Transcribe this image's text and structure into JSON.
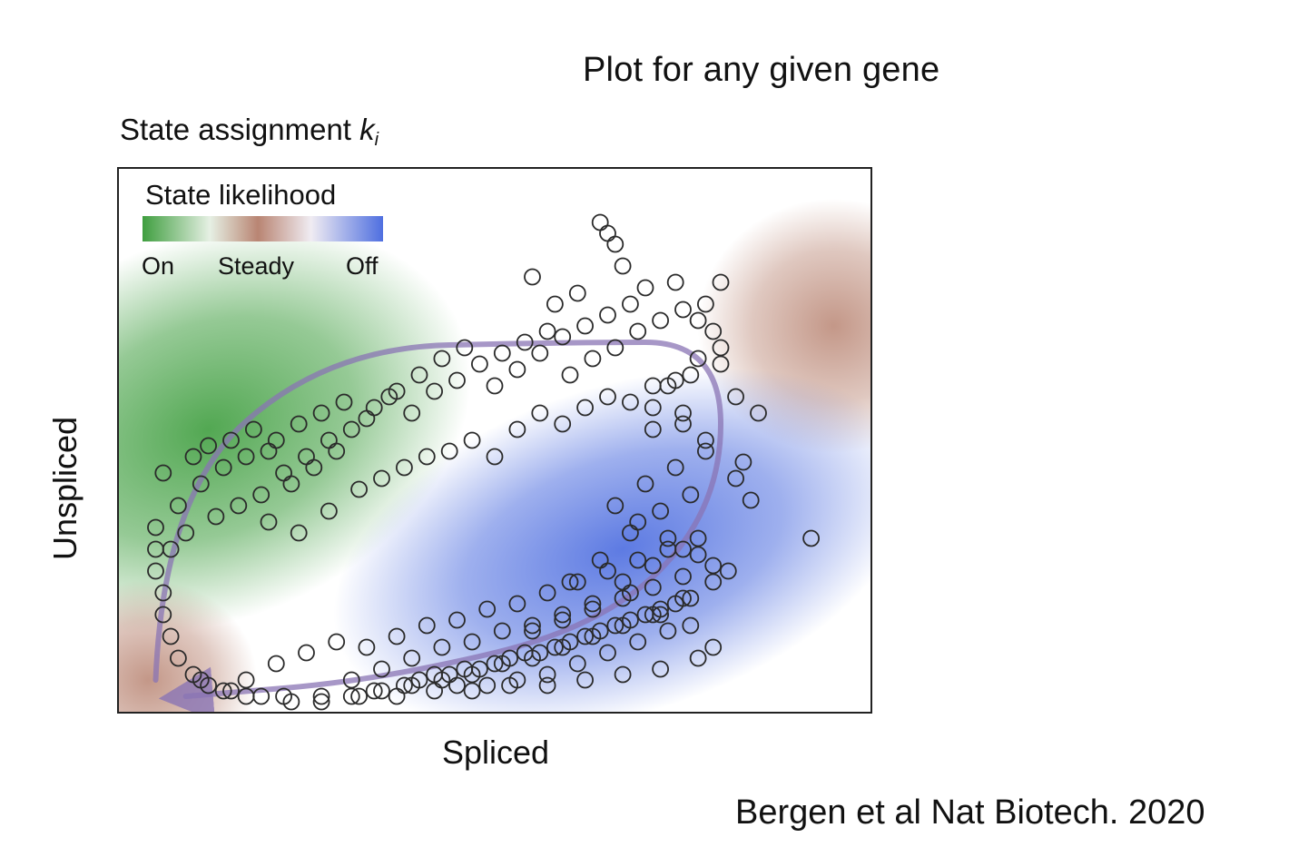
{
  "slide_title": "Plot for any given gene",
  "citation": "Bergen et al Nat Biotech. 2020",
  "chart_data": {
    "type": "scatter",
    "title": "State assignment",
    "title_symbol": "k",
    "title_subscript": "i",
    "xlabel": "Spliced",
    "ylabel": "Unspliced",
    "axis_ticks_shown": false,
    "grid": false,
    "xlim": [
      0,
      1
    ],
    "ylim": [
      0,
      1
    ],
    "legend": {
      "title": "State likelihood",
      "placement": "top-left",
      "labels": [
        "On",
        "Steady",
        "Off"
      ],
      "colors": {
        "on": "#3f9e3f",
        "steady": "#b98573",
        "off": "#4f6fe0"
      }
    },
    "background_regions": [
      {
        "state": "on",
        "center": [
          0.12,
          0.52
        ],
        "color": "#3f9e3f"
      },
      {
        "state": "steady",
        "center": [
          0.95,
          0.71
        ],
        "color": "#b98573"
      },
      {
        "state": "steady",
        "center": [
          0.04,
          0.06
        ],
        "color": "#b98573"
      },
      {
        "state": "off",
        "center": [
          0.67,
          0.3
        ],
        "color": "#4f6fe0"
      }
    ],
    "trajectory": {
      "color": "#8a74b4",
      "description_points": [
        [
          0.05,
          0.06
        ],
        [
          0.06,
          0.4
        ],
        [
          0.28,
          0.67
        ],
        [
          0.6,
          0.68
        ],
        [
          0.8,
          0.68
        ],
        [
          0.8,
          0.38
        ],
        [
          0.65,
          0.16
        ],
        [
          0.35,
          0.06
        ],
        [
          0.09,
          0.03
        ]
      ]
    },
    "x": [
      0.06,
      0.1,
      0.12,
      0.15,
      0.18,
      0.2,
      0.08,
      0.11,
      0.14,
      0.17,
      0.21,
      0.24,
      0.27,
      0.3,
      0.22,
      0.25,
      0.28,
      0.31,
      0.34,
      0.37,
      0.19,
      0.23,
      0.26,
      0.29,
      0.33,
      0.36,
      0.4,
      0.43,
      0.46,
      0.39,
      0.42,
      0.45,
      0.48,
      0.51,
      0.54,
      0.57,
      0.5,
      0.53,
      0.56,
      0.59,
      0.62,
      0.65,
      0.68,
      0.6,
      0.63,
      0.66,
      0.69,
      0.72,
      0.75,
      0.78,
      0.73,
      0.76,
      0.8,
      0.82,
      0.85,
      0.64,
      0.55,
      0.58,
      0.61,
      0.67,
      0.7,
      0.74,
      0.77,
      0.79,
      0.71,
      0.75,
      0.78,
      0.83,
      0.65,
      0.66,
      0.8,
      0.92,
      0.07,
      0.09,
      0.13,
      0.16,
      0.2,
      0.24,
      0.28,
      0.32,
      0.35,
      0.38,
      0.41,
      0.44,
      0.47,
      0.5,
      0.53,
      0.56,
      0.59,
      0.62,
      0.65,
      0.68,
      0.71,
      0.74,
      0.77,
      0.8,
      0.05,
      0.05,
      0.05,
      0.06,
      0.06,
      0.07,
      0.08,
      0.1,
      0.12,
      0.14,
      0.17,
      0.21,
      0.25,
      0.29,
      0.33,
      0.37,
      0.41,
      0.45,
      0.49,
      0.53,
      0.57,
      0.61,
      0.65,
      0.69,
      0.73,
      0.77,
      0.31,
      0.35,
      0.39,
      0.43,
      0.47,
      0.51,
      0.55,
      0.59,
      0.63,
      0.67,
      0.71,
      0.75,
      0.79,
      0.34,
      0.38,
      0.42,
      0.46,
      0.5,
      0.54,
      0.58,
      0.62,
      0.66,
      0.7,
      0.74,
      0.4,
      0.44,
      0.48,
      0.52,
      0.56,
      0.6,
      0.64,
      0.68,
      0.72,
      0.76,
      0.45,
      0.49,
      0.53,
      0.57,
      0.61,
      0.65,
      0.69,
      0.73,
      0.55,
      0.59,
      0.63,
      0.67,
      0.71,
      0.75,
      0.6,
      0.64,
      0.68,
      0.72,
      0.76,
      0.66,
      0.7,
      0.74,
      0.78,
      0.71,
      0.75,
      0.82,
      0.84,
      0.69,
      0.73,
      0.77,
      0.81,
      0.68,
      0.72,
      0.76,
      0.79,
      0.17,
      0.22,
      0.27,
      0.32,
      0.37,
      0.42,
      0.47,
      0.52,
      0.57,
      0.62,
      0.67,
      0.72,
      0.77,
      0.11,
      0.15,
      0.19,
      0.23,
      0.27,
      0.31,
      0.35,
      0.39,
      0.43,
      0.47,
      0.51,
      0.55,
      0.59,
      0.63,
      0.67,
      0.71,
      0.75,
      0.79
    ],
    "y": [
      0.44,
      0.47,
      0.49,
      0.5,
      0.52,
      0.48,
      0.38,
      0.42,
      0.45,
      0.47,
      0.5,
      0.53,
      0.55,
      0.57,
      0.44,
      0.47,
      0.5,
      0.52,
      0.56,
      0.59,
      0.4,
      0.42,
      0.45,
      0.48,
      0.54,
      0.58,
      0.62,
      0.65,
      0.67,
      0.55,
      0.59,
      0.61,
      0.64,
      0.66,
      0.68,
      0.7,
      0.6,
      0.63,
      0.66,
      0.69,
      0.71,
      0.73,
      0.75,
      0.62,
      0.65,
      0.67,
      0.7,
      0.72,
      0.74,
      0.75,
      0.6,
      0.62,
      0.64,
      0.58,
      0.55,
      0.9,
      0.8,
      0.75,
      0.77,
      0.82,
      0.78,
      0.79,
      0.72,
      0.7,
      0.56,
      0.53,
      0.5,
      0.46,
      0.88,
      0.86,
      0.79,
      0.32,
      0.3,
      0.33,
      0.36,
      0.38,
      0.35,
      0.33,
      0.37,
      0.41,
      0.43,
      0.45,
      0.47,
      0.48,
      0.5,
      0.47,
      0.52,
      0.55,
      0.53,
      0.56,
      0.58,
      0.57,
      0.6,
      0.61,
      0.65,
      0.67,
      0.34,
      0.3,
      0.26,
      0.22,
      0.18,
      0.14,
      0.1,
      0.07,
      0.05,
      0.04,
      0.06,
      0.09,
      0.11,
      0.13,
      0.12,
      0.14,
      0.16,
      0.17,
      0.19,
      0.2,
      0.22,
      0.24,
      0.26,
      0.28,
      0.3,
      0.32,
      0.06,
      0.08,
      0.1,
      0.12,
      0.13,
      0.15,
      0.16,
      0.18,
      0.19,
      0.21,
      0.23,
      0.25,
      0.27,
      0.04,
      0.05,
      0.07,
      0.08,
      0.09,
      0.11,
      0.12,
      0.14,
      0.16,
      0.18,
      0.2,
      0.06,
      0.07,
      0.08,
      0.1,
      0.11,
      0.13,
      0.15,
      0.17,
      0.19,
      0.21,
      0.05,
      0.05,
      0.06,
      0.07,
      0.09,
      0.11,
      0.13,
      0.15,
      0.15,
      0.17,
      0.2,
      0.24,
      0.27,
      0.3,
      0.24,
      0.28,
      0.33,
      0.37,
      0.4,
      0.38,
      0.42,
      0.45,
      0.48,
      0.52,
      0.55,
      0.43,
      0.39,
      0.35,
      0.32,
      0.29,
      0.26,
      0.22,
      0.18,
      0.16,
      0.12,
      0.03,
      0.03,
      0.03,
      0.03,
      0.03,
      0.04,
      0.04,
      0.05,
      0.05,
      0.06,
      0.07,
      0.08,
      0.1,
      0.06,
      0.04,
      0.03,
      0.02,
      0.02,
      0.03,
      0.04,
      0.05,
      0.06,
      0.07,
      0.09,
      0.1,
      0.12,
      0.14,
      0.16,
      0.18,
      0.21,
      0.24
    ]
  }
}
